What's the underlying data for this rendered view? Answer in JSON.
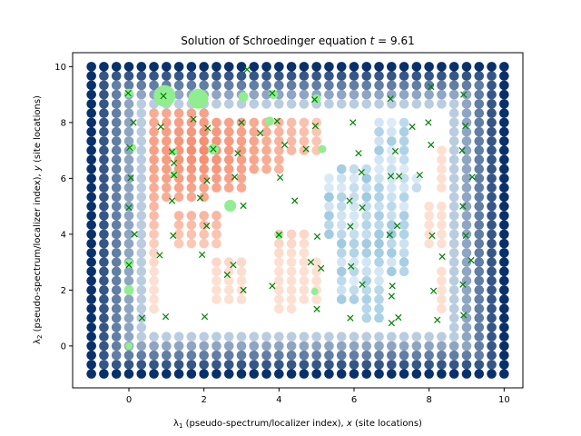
{
  "chart_data": {
    "type": "scatter",
    "title": "Solution of Schroedinger equation $t = 9.61$",
    "title_main": "Solution of Schroedinger equation ",
    "title_t": "t",
    "title_value": " = 9.61",
    "xlabel_prefix": "λ",
    "xlabel_sub": "1",
    "xlabel_rest": " (pseudo-spectrum/localizer index), ",
    "xlabel_var": "x",
    "xlabel_tail": " (site locations)",
    "ylabel_prefix": "λ",
    "ylabel_sub": "2",
    "ylabel_rest": " (pseudo-spectrum/localizer index), ",
    "ylabel_var": "y",
    "ylabel_tail": " (site locations)",
    "xlim": [
      -1.5,
      10.5
    ],
    "ylim": [
      -1.5,
      10.5
    ],
    "xticks": [
      0,
      2,
      4,
      6,
      8,
      10
    ],
    "yticks": [
      0,
      2,
      4,
      6,
      8,
      10
    ],
    "grid": false,
    "pseudospectrum_grid": {
      "start": -1,
      "end": 10,
      "step": 0.333333
    },
    "colors": {
      "spectrum_dark": "#08306b",
      "spectrum_light": "#deebf7",
      "red_dark": "#f4896b",
      "red_light": "#fde0d2",
      "site_marker": "#008000",
      "wavefunction": "#90ee90"
    },
    "series": [
      {
        "x": [
          -0.02,
          0.12,
          0.92,
          0.85,
          0.02,
          1.15,
          1.72,
          2.1,
          1.2,
          2.08,
          0.05,
          1.15,
          2.25,
          2.82,
          1.2,
          1.9,
          3.0,
          2.9,
          0.0,
          0.15,
          1.18,
          2.07,
          3.05,
          0.35,
          0.98,
          2.02,
          2.62,
          3.05,
          0.0,
          0.82,
          1.95,
          2.78,
          3.82,
          3.15,
          3.5,
          3.95,
          4.15,
          4.72,
          4.42,
          4.03,
          4.95,
          4.97,
          4.0,
          3.82,
          4.85,
          5.02,
          5.12,
          5.01,
          5.97,
          6.12,
          6.2,
          5.88,
          6.97,
          7.1,
          7.2,
          6.98,
          5.9,
          6.22,
          5.92,
          7.15,
          6.95,
          7.02,
          7.55,
          7.75,
          7.98,
          8.05,
          8.05,
          8.08,
          8.35,
          8.92,
          8.97,
          8.88,
          9.15,
          8.9,
          8.98,
          9.12,
          8.92,
          7.0,
          8.12,
          6.22,
          7.18,
          8.22,
          5.9,
          7.0,
          8.9
        ],
        "y": [
          9.05,
          8.0,
          8.95,
          7.85,
          7.1,
          6.95,
          8.12,
          7.8,
          6.12,
          5.92,
          6.02,
          5.2,
          7.05,
          6.05,
          6.55,
          5.3,
          8.0,
          6.9,
          4.95,
          4.0,
          3.95,
          4.3,
          5.02,
          1.0,
          1.05,
          1.05,
          2.55,
          2.0,
          2.9,
          3.25,
          3.27,
          2.9,
          9.05,
          9.9,
          7.62,
          8.05,
          7.2,
          7.05,
          5.2,
          6.03,
          8.82,
          7.88,
          3.98,
          2.15,
          3.0,
          3.92,
          2.78,
          1.32,
          8.0,
          6.9,
          6.22,
          5.2,
          8.85,
          6.97,
          6.08,
          6.08,
          4.28,
          4.95,
          2.85,
          4.3,
          3.98,
          2.15,
          7.85,
          6.12,
          8.0,
          7.2,
          9.28,
          3.95,
          3.2,
          9.0,
          7.88,
          7.0,
          6.05,
          5.0,
          3.95,
          3.07,
          1.1,
          1.78,
          1.97,
          2.2,
          1.02,
          0.93,
          1.0,
          0.82,
          2.2
        ]
      }
    ]
  }
}
